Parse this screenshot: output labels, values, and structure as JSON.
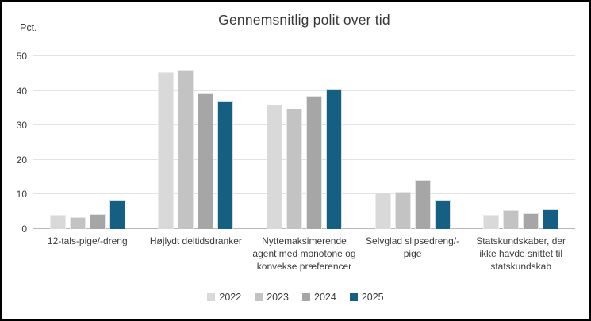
{
  "chart_data": {
    "type": "bar",
    "title": "Gennemsnitlig polit over tid",
    "unit_label": "Pct.",
    "categories": [
      "12-tals-pige/-dreng",
      "Højlydt deltidsdranker",
      "Nyttemaksimerende agent med monotone og konvekse præferencer",
      "Selvglad slipsedreng/-pige",
      "Statskundskaber, der ikke havde snittet til statskundskab"
    ],
    "series": [
      {
        "name": "2022",
        "color": "#d9d9d9",
        "values": [
          4.2,
          45.5,
          36.0,
          10.5,
          4.1
        ]
      },
      {
        "name": "2023",
        "color": "#c3c3c3",
        "values": [
          3.4,
          46.0,
          34.8,
          10.8,
          5.6
        ]
      },
      {
        "name": "2024",
        "color": "#a6a6a6",
        "values": [
          4.3,
          39.5,
          38.5,
          14.2,
          4.5
        ]
      },
      {
        "name": "2025",
        "color": "#156082",
        "values": [
          8.4,
          37.0,
          40.7,
          8.5,
          5.8
        ]
      }
    ],
    "ylim": [
      0,
      50
    ],
    "yticks": [
      0,
      10,
      20,
      30,
      40,
      50
    ],
    "grid": true,
    "legend_position": "bottom"
  },
  "colors": {
    "background": "#ffffff",
    "frame_border": "#000000",
    "gridline": "#e3e3e3",
    "axis_line": "#b8b8b8",
    "text": "#3c3c3c"
  }
}
